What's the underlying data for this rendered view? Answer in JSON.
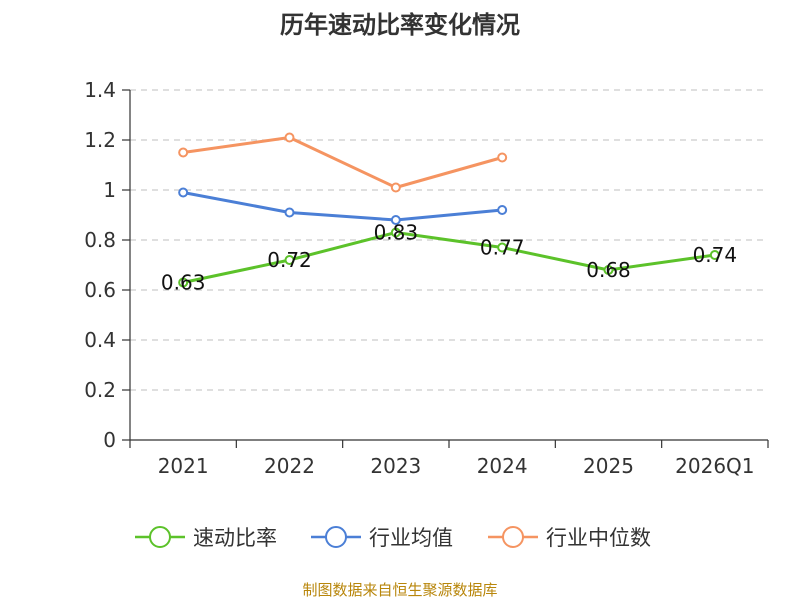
{
  "chart_data": {
    "type": "line",
    "title": "历年速动比率变化情况",
    "categories": [
      "2021",
      "2022",
      "2023",
      "2024",
      "2025",
      "2026Q1"
    ],
    "ylim": [
      0,
      1.4
    ],
    "yticks": [
      "0",
      "0.2",
      "0.4",
      "0.6",
      "0.8",
      "1",
      "1.2",
      "1.4"
    ],
    "ytick_values": [
      0,
      0.2,
      0.4,
      0.6,
      0.8,
      1.0,
      1.2,
      1.4
    ],
    "grid": true,
    "legend_position": "bottom",
    "series": [
      {
        "name": "速动比率",
        "color": "#5cc22a",
        "values": [
          0.63,
          0.72,
          0.83,
          0.77,
          0.68,
          0.74
        ],
        "labels": [
          "0.63",
          "0.72",
          "0.83",
          "0.77",
          "0.68",
          "0.74"
        ]
      },
      {
        "name": "行业均值",
        "color": "#4b7fd6",
        "values": [
          0.99,
          0.91,
          0.88,
          0.92,
          null,
          null
        ]
      },
      {
        "name": "行业中位数",
        "color": "#f59461",
        "values": [
          1.15,
          1.21,
          1.01,
          1.13,
          null,
          null
        ]
      }
    ],
    "source": "制图数据来自恒生聚源数据库"
  }
}
